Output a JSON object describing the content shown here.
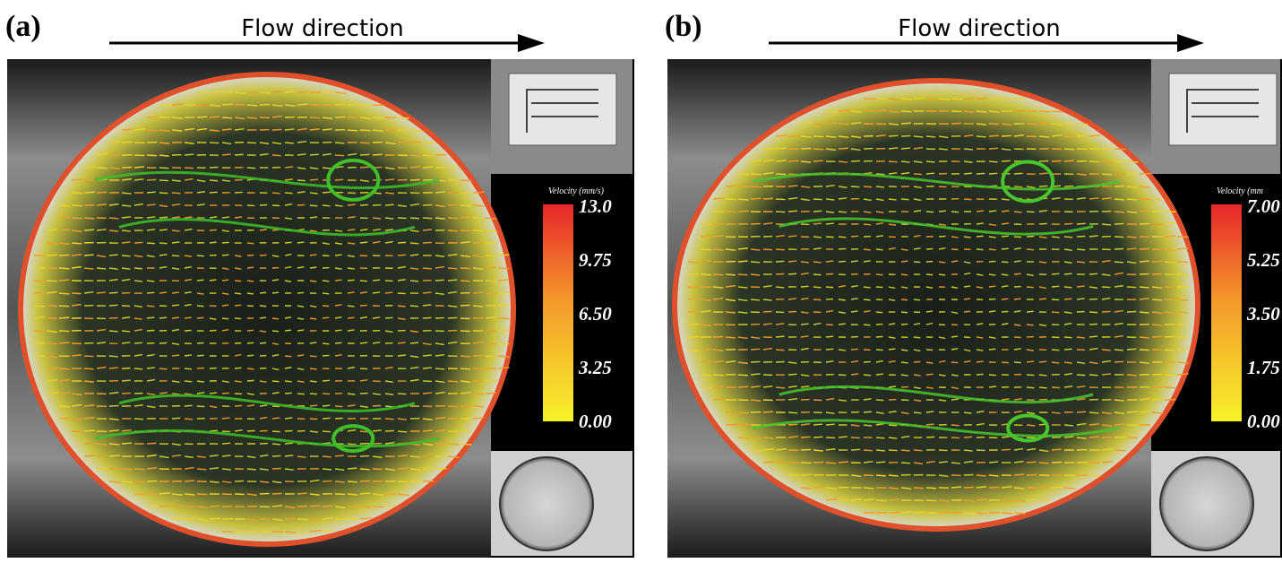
{
  "panels": [
    {
      "label": "(a)",
      "arrow_label": "Flow direction",
      "colorbar": {
        "title": "Velocity (mm/s)",
        "ticks": [
          "13.0",
          "9.75",
          "6.50",
          "3.25",
          "0.00"
        ]
      }
    },
    {
      "label": "(b)",
      "arrow_label": "Flow direction",
      "colorbar": {
        "title": "Velocity (mm",
        "ticks": [
          "7.00",
          "5.25",
          "3.50",
          "1.75",
          "0.00"
        ]
      }
    }
  ]
}
